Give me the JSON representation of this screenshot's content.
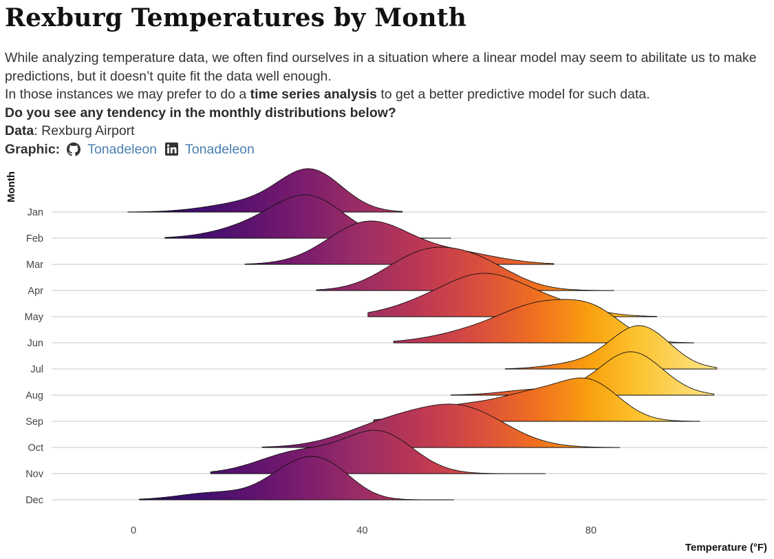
{
  "title": "Rexburg Temperatures by Month",
  "subtitle": {
    "line1": "While analyzing temperature data, we often find ourselves in a situation where a linear model may seem to abilitate us to make predictions, but it doesn’t quite fit the data well enough.",
    "line2_pre": "In those instances we may prefer to do a ",
    "line2_bold": "time series analysis",
    "line2_post": " to get a better predictive model for such data.",
    "question": "Do you see any tendency in the monthly distributions below?",
    "data_label": "Data",
    "data_value": ": Rexburg Airport",
    "graphic_label": "Graphic:",
    "github_icon": "github-icon",
    "github_handle": "Tonadeleon",
    "linkedin_icon": "linkedin-icon",
    "linkedin_handle": "Tonadeleon",
    "link_color": "#4a7fb0"
  },
  "chart_data": {
    "type": "ridgeline",
    "title": "Rexburg Temperatures by Month",
    "xlabel": "Temperature (°F)",
    "ylabel": "Month",
    "x_ticks": [
      0,
      40,
      80
    ],
    "xlim": [
      -14,
      111
    ],
    "grid": "horizontal",
    "fill": "gradient by temperature (inferno palette)",
    "gradient_stops": [
      {
        "t": -5,
        "color": "#1b0c41"
      },
      {
        "t": 10,
        "color": "#3b0f70"
      },
      {
        "t": 20,
        "color": "#5c126e"
      },
      {
        "t": 30,
        "color": "#7d1d6d"
      },
      {
        "t": 40,
        "color": "#9c2e64"
      },
      {
        "t": 50,
        "color": "#bc3754"
      },
      {
        "t": 60,
        "color": "#d94d3e"
      },
      {
        "t": 70,
        "color": "#ef6e21"
      },
      {
        "t": 80,
        "color": "#f9a10f"
      },
      {
        "t": 88,
        "color": "#fcc22f"
      },
      {
        "t": 100,
        "color": "#fee07e"
      }
    ],
    "months": [
      {
        "name": "Jan",
        "min": -1,
        "max": 47,
        "peaks": [
          {
            "m": 20,
            "s": 7,
            "w": 0.18
          },
          {
            "m": 31,
            "s": 5.5,
            "w": 0.82
          }
        ]
      },
      {
        "name": "Feb",
        "min": 5.5,
        "max": 55.5,
        "peaks": [
          {
            "m": 22,
            "s": 7,
            "w": 0.25
          },
          {
            "m": 31,
            "s": 6,
            "w": 0.75
          }
        ]
      },
      {
        "name": "Mar",
        "min": 19.5,
        "max": 73.5,
        "peaks": [
          {
            "m": 41,
            "s": 7,
            "w": 0.78
          },
          {
            "m": 56,
            "s": 7.5,
            "w": 0.22
          }
        ]
      },
      {
        "name": "Apr",
        "min": 32,
        "max": 84,
        "peaks": [
          {
            "m": 50,
            "s": 6.5,
            "w": 0.55
          },
          {
            "m": 60,
            "s": 6.5,
            "w": 0.45
          }
        ]
      },
      {
        "name": "May",
        "min": 41,
        "max": 91.5,
        "peaks": [
          {
            "m": 52,
            "s": 7,
            "w": 0.22
          },
          {
            "m": 61.5,
            "s": 6.5,
            "w": 0.55
          },
          {
            "m": 72,
            "s": 7,
            "w": 0.23
          }
        ]
      },
      {
        "name": "Jun",
        "min": 45.5,
        "max": 98,
        "peaks": [
          {
            "m": 62,
            "s": 8,
            "w": 0.2
          },
          {
            "m": 72,
            "s": 6.5,
            "w": 0.45
          },
          {
            "m": 81,
            "s": 5,
            "w": 0.35
          }
        ]
      },
      {
        "name": "Jul",
        "min": 65,
        "max": 102,
        "peaks": [
          {
            "m": 77,
            "s": 5,
            "w": 0.1
          },
          {
            "m": 88.5,
            "s": 5.2,
            "w": 0.9
          }
        ]
      },
      {
        "name": "Aug",
        "min": 55.5,
        "max": 101.5,
        "peaks": [
          {
            "m": 71,
            "s": 6,
            "w": 0.12
          },
          {
            "m": 87,
            "s": 5.5,
            "w": 0.88
          }
        ]
      },
      {
        "name": "Sep",
        "min": 42,
        "max": 99,
        "peaks": [
          {
            "m": 57,
            "s": 7,
            "w": 0.2
          },
          {
            "m": 70,
            "s": 6,
            "w": 0.32
          },
          {
            "m": 80,
            "s": 5.2,
            "w": 0.48
          }
        ]
      },
      {
        "name": "Oct",
        "min": 22.5,
        "max": 85,
        "peaks": [
          {
            "m": 45,
            "s": 8,
            "w": 0.4
          },
          {
            "m": 58,
            "s": 7.5,
            "w": 0.6
          }
        ]
      },
      {
        "name": "Nov",
        "min": 13.5,
        "max": 72,
        "peaks": [
          {
            "m": 29,
            "s": 7,
            "w": 0.35
          },
          {
            "m": 43,
            "s": 6,
            "w": 0.65
          }
        ]
      },
      {
        "name": "Dec",
        "min": 1,
        "max": 56,
        "peaks": [
          {
            "m": 14,
            "s": 6,
            "w": 0.12
          },
          {
            "m": 29,
            "s": 5.5,
            "w": 0.58
          },
          {
            "m": 35,
            "s": 4.5,
            "w": 0.3
          }
        ]
      }
    ]
  }
}
